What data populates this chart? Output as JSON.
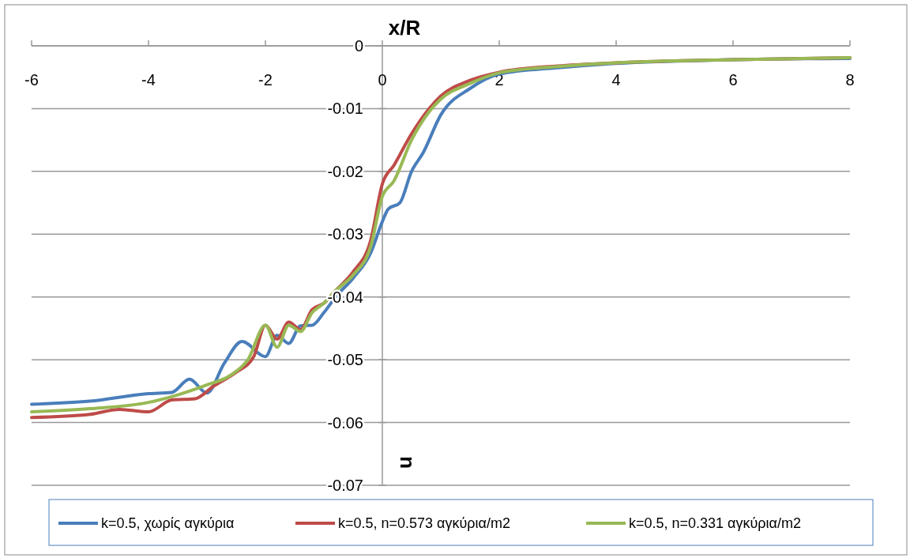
{
  "chart_data": {
    "type": "line",
    "xlabel": "x/R",
    "ylabel": "u",
    "xlim": [
      -6,
      8
    ],
    "xticks": [
      -6,
      -4,
      -2,
      0,
      2,
      4,
      6,
      8
    ],
    "ylim": [
      -0.07,
      0
    ],
    "yticks": [
      -0.07,
      -0.06,
      -0.05,
      -0.04,
      -0.03,
      -0.02,
      -0.01,
      0
    ],
    "grid": "y",
    "legend": "bottom",
    "marker": "none",
    "line_style": "solid",
    "series": [
      {
        "name": "k=0.5, χωρίς αγκύρια",
        "color": "#4a7ebb",
        "x": [
          -6,
          -5,
          -4,
          -3.6,
          -3.3,
          -3,
          -2.7,
          -2.4,
          -2,
          -1.8,
          -1.6,
          -1.4,
          -1.2,
          -1,
          -0.8,
          -0.5,
          -0.2,
          0,
          0.1,
          0.3,
          0.5,
          0.7,
          1,
          1.5,
          2,
          3,
          4,
          6,
          8
        ],
        "values": [
          -0.0571,
          -0.0566,
          -0.0554,
          -0.0552,
          -0.0531,
          -0.0553,
          -0.0505,
          -0.0471,
          -0.0495,
          -0.0461,
          -0.0474,
          -0.0446,
          -0.0445,
          -0.0425,
          -0.04,
          -0.037,
          -0.033,
          -0.028,
          -0.026,
          -0.025,
          -0.02,
          -0.017,
          -0.011,
          -0.0068,
          -0.0045,
          -0.0035,
          -0.0028,
          -0.0022,
          -0.002
        ]
      },
      {
        "name": "k=0.5, n=0.573 αγκύρια/m2",
        "color": "#be4b48",
        "x": [
          -6,
          -5,
          -4.5,
          -4,
          -3.6,
          -3.2,
          -2.9,
          -2.5,
          -2.2,
          -2,
          -1.8,
          -1.6,
          -1.4,
          -1.2,
          -1,
          -0.8,
          -0.5,
          -0.2,
          0,
          0.2,
          0.5,
          0.8,
          1,
          1.5,
          2,
          3,
          4,
          6,
          8
        ],
        "values": [
          -0.0592,
          -0.0587,
          -0.0579,
          -0.0583,
          -0.0564,
          -0.0562,
          -0.0543,
          -0.052,
          -0.0495,
          -0.0445,
          -0.0467,
          -0.044,
          -0.0452,
          -0.042,
          -0.041,
          -0.039,
          -0.036,
          -0.031,
          -0.022,
          -0.019,
          -0.014,
          -0.01,
          -0.008,
          -0.0055,
          -0.0042,
          -0.0032,
          -0.0027,
          -0.0022,
          -0.0019
        ]
      },
      {
        "name": "k=0.5, n=0.331 αγκύρια/m2",
        "color": "#98b954",
        "x": [
          -6,
          -5,
          -4,
          -3.5,
          -3,
          -2.6,
          -2.3,
          -2,
          -1.8,
          -1.6,
          -1.4,
          -1.2,
          -1,
          -0.8,
          -0.5,
          -0.2,
          0,
          0.2,
          0.5,
          0.8,
          1,
          1.5,
          2,
          3,
          4,
          6,
          8
        ],
        "values": [
          -0.0583,
          -0.0578,
          -0.0568,
          -0.0556,
          -0.054,
          -0.0525,
          -0.05,
          -0.0445,
          -0.048,
          -0.0445,
          -0.0455,
          -0.0425,
          -0.041,
          -0.039,
          -0.0365,
          -0.032,
          -0.024,
          -0.0215,
          -0.015,
          -0.0105,
          -0.0085,
          -0.006,
          -0.0043,
          -0.0033,
          -0.0027,
          -0.0022,
          -0.0019
        ]
      }
    ]
  }
}
